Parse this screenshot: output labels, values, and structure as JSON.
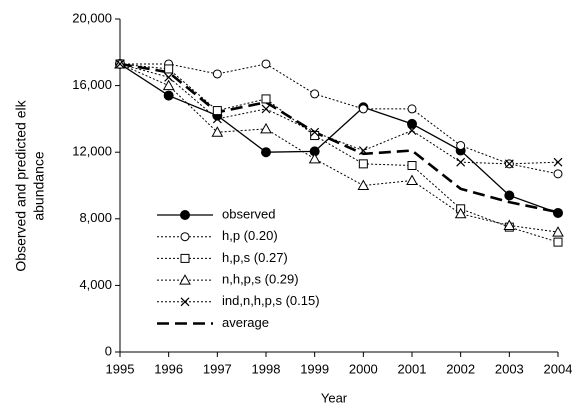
{
  "chart_data": {
    "type": "line",
    "x_label": "Year",
    "y_label": [
      "Observed and predicted elk",
      "abundance"
    ],
    "x": [
      1995,
      1996,
      1997,
      1998,
      1999,
      2000,
      2001,
      2002,
      2003,
      2004
    ],
    "xlim": [
      1995,
      2004
    ],
    "xticks": [
      1995,
      1996,
      1997,
      1998,
      1999,
      2000,
      2001,
      2002,
      2003,
      2004
    ],
    "ylim": [
      0,
      20000
    ],
    "yticks": [
      0,
      {
        "value": 4000,
        "label": "4,000"
      },
      {
        "value": 8000,
        "label": "8,000"
      },
      {
        "value": 12000,
        "label": "12,000"
      },
      {
        "value": 16000,
        "label": "16,000"
      },
      {
        "value": 20000,
        "label": "20,000"
      }
    ],
    "grid": false,
    "legend": "lower left",
    "series": [
      {
        "name": "observed",
        "color": "#000000",
        "marker": "filled-circle",
        "line_style": "solid",
        "values": [
          17300,
          15400,
          14200,
          12000,
          12050,
          14700,
          13700,
          12100,
          9400,
          8350
        ]
      },
      {
        "name": "h,p (0.20)",
        "color": "#000000",
        "marker": "open-circle",
        "line_style": "dotted",
        "values": [
          17300,
          17300,
          16700,
          17300,
          15500,
          14600,
          14600,
          12400,
          11300,
          10700
        ]
      },
      {
        "name": "h,p,s (0.27)",
        "color": "#000000",
        "marker": "open-square",
        "line_style": "dotted",
        "values": [
          17300,
          17000,
          14500,
          15200,
          13000,
          11300,
          11200,
          8600,
          7500,
          6600
        ]
      },
      {
        "name": "n,h,p,s (0.29)",
        "color": "#000000",
        "marker": "open-triangle",
        "line_style": "dotted",
        "values": [
          17300,
          16000,
          13200,
          13400,
          11600,
          10000,
          10300,
          8300,
          7600,
          7200
        ]
      },
      {
        "name": "ind,n,h,p,s (0.15)",
        "color": "#000000",
        "marker": "cross",
        "line_style": "dotted",
        "values": [
          17300,
          16500,
          14000,
          14600,
          13200,
          12100,
          13300,
          11400,
          11300,
          11400
        ]
      },
      {
        "name": "average",
        "color": "#000000",
        "marker": "none",
        "line_style": "dashed",
        "values": [
          17300,
          16800,
          14400,
          15000,
          13200,
          11900,
          12100,
          9800,
          9000,
          8400
        ]
      }
    ]
  }
}
